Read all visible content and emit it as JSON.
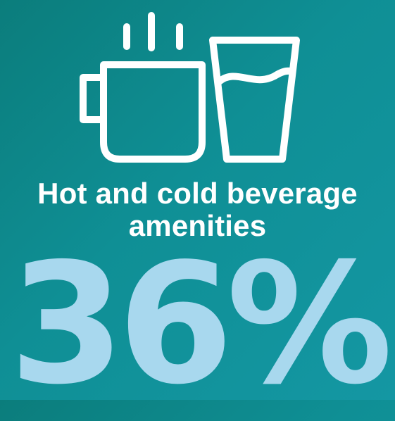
{
  "colors": {
    "background_start": "#0b7d7c",
    "background_end": "#1497a3",
    "headline": "#ffffff",
    "stat": "#a8d8ee",
    "icon_stroke": "#ffffff"
  },
  "icons": {
    "left": "hot-mug-icon",
    "right": "water-glass-icon"
  },
  "headline": {
    "line1": "Hot and cold beverage",
    "line2": "amenities"
  },
  "stat": {
    "value": "36%"
  }
}
